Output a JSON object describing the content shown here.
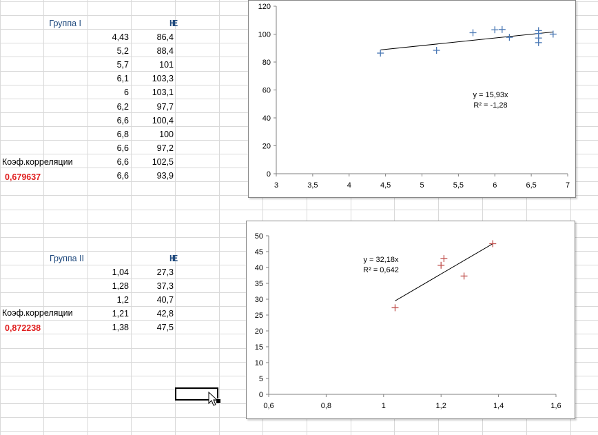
{
  "group1": {
    "label": "Группа I",
    "col_h": "H",
    "col_e": "E",
    "rows": [
      {
        "h": "4,43",
        "e": "86,4"
      },
      {
        "h": "5,2",
        "e": "88,4"
      },
      {
        "h": "5,7",
        "e": "101"
      },
      {
        "h": "6,1",
        "e": "103,3"
      },
      {
        "h": "6",
        "e": "103,1"
      },
      {
        "h": "6,2",
        "e": "97,7"
      },
      {
        "h": "6,6",
        "e": "100,4"
      },
      {
        "h": "6,8",
        "e": "100"
      },
      {
        "h": "6,6",
        "e": "97,2"
      },
      {
        "h": "6,6",
        "e": "102,5"
      },
      {
        "h": "6,6",
        "e": "93,9"
      }
    ],
    "corr_label": "Коэф.корреляции",
    "corr_value": "0,679637"
  },
  "group2": {
    "label": "Группа II",
    "col_h": "H",
    "col_e": "E",
    "rows": [
      {
        "h": "1,04",
        "e": "27,3"
      },
      {
        "h": "1,28",
        "e": "37,3"
      },
      {
        "h": "1,2",
        "e": "40,7"
      },
      {
        "h": "1,21",
        "e": "42,8"
      },
      {
        "h": "1,38",
        "e": "47,5"
      }
    ],
    "corr_label": "Коэф.корреляции",
    "corr_value": "0,872238"
  },
  "chart_data": [
    {
      "type": "scatter",
      "title": "",
      "x": [
        4.43,
        5.2,
        5.7,
        6.1,
        6.0,
        6.2,
        6.6,
        6.8,
        6.6,
        6.6,
        6.6
      ],
      "y": [
        86.4,
        88.4,
        101,
        103.3,
        103.1,
        97.7,
        100.4,
        100,
        97.2,
        102.5,
        93.9
      ],
      "xlim": [
        3,
        7
      ],
      "ylim": [
        0,
        120
      ],
      "xticks": [
        "3",
        "3,5",
        "4",
        "4,5",
        "5",
        "5,5",
        "6",
        "6,5",
        "7"
      ],
      "yticks": [
        "0",
        "20",
        "40",
        "60",
        "80",
        "100",
        "120"
      ],
      "trendline": {
        "slope": 15.93,
        "x_range": [
          4.43,
          6.8
        ]
      },
      "equation": "y = 15,93x",
      "r2": "R² = -1,28",
      "marker_color": "#4a78b5",
      "grid": false
    },
    {
      "type": "scatter",
      "title": "",
      "x": [
        1.04,
        1.28,
        1.2,
        1.21,
        1.38
      ],
      "y": [
        27.3,
        37.3,
        40.7,
        42.8,
        47.5
      ],
      "xlim": [
        0.6,
        1.6
      ],
      "ylim": [
        0,
        50
      ],
      "xticks": [
        "0,6",
        "0,8",
        "1",
        "1,2",
        "1,4",
        "1,6"
      ],
      "yticks": [
        "0",
        "5",
        "10",
        "15",
        "20",
        "25",
        "30",
        "35",
        "40",
        "45",
        "50"
      ],
      "trendline": {
        "slope": 32.18,
        "x_range": [
          1.04,
          1.38
        ]
      },
      "equation": "y = 32,18x",
      "r2": "R² = 0,642",
      "marker_color": "#c0504d",
      "grid": false
    }
  ]
}
